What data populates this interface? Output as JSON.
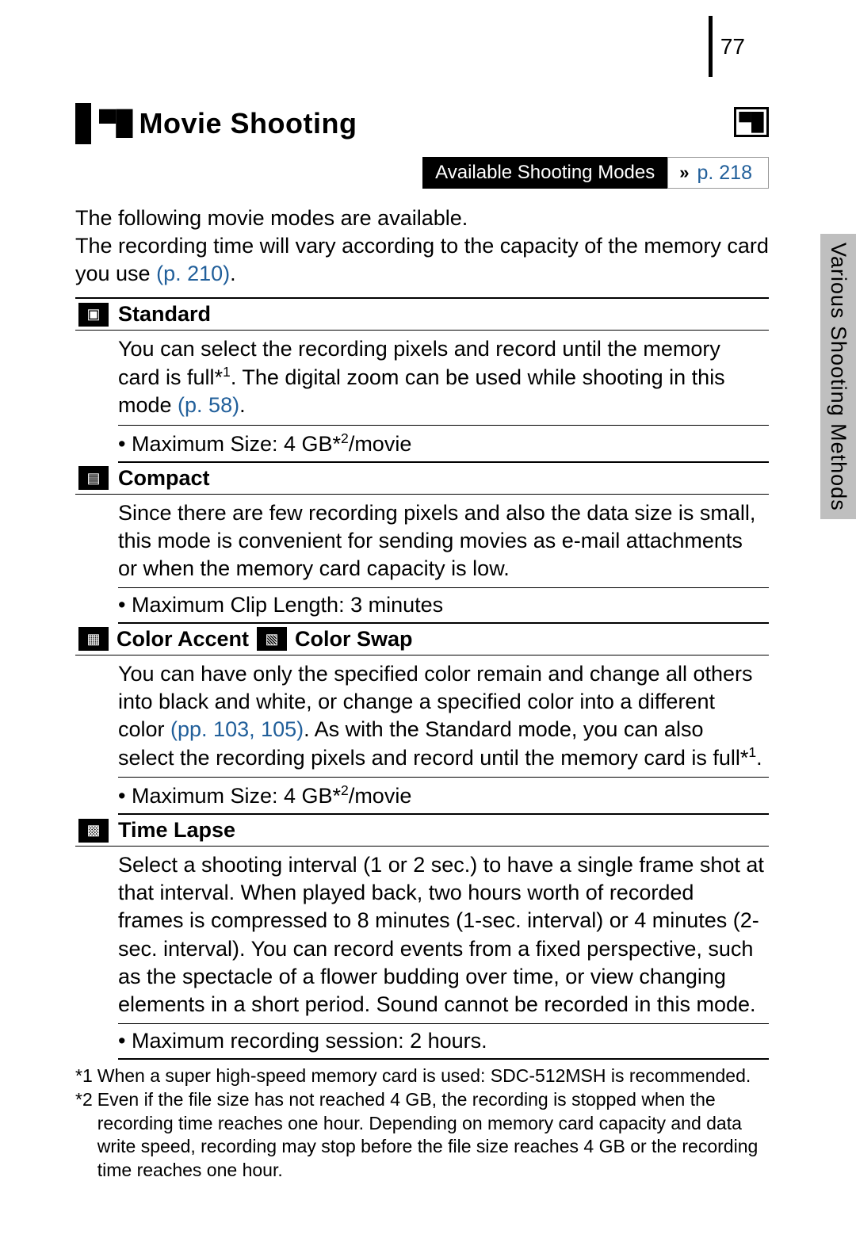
{
  "page_number": "77",
  "side_tab": "Various Shooting Methods",
  "title": {
    "icon": "▀█",
    "text": "Movie Shooting",
    "right_icon": "▀█"
  },
  "asm": {
    "label": "Available Shooting Modes",
    "arrow": "»",
    "link": "p. 218"
  },
  "intro": {
    "line1": "The following movie modes are available.",
    "line2_a": "The recording time will vary according to the capacity of the memory card you use ",
    "line2_link": "(p. 210)",
    "line2_b": "."
  },
  "modes": {
    "standard": {
      "icon": "▣",
      "title": "Standard",
      "body_a": "You can select the recording pixels and record until the memory card is full*",
      "body_sup1": "1",
      "body_b": ". The digital zoom can be used while shooting in this mode ",
      "body_link": "(p. 58)",
      "body_c": ".",
      "max_a": "Maximum Size: 4 GB*",
      "max_sup": "2",
      "max_b": "/movie"
    },
    "compact": {
      "icon": "▤",
      "title": "Compact",
      "body": "Since there are few recording pixels and also the data size is small, this mode is convenient for sending movies as e-mail attachments or when the memory card capacity is low.",
      "max": "Maximum Clip Length: 3 minutes"
    },
    "color": {
      "icon1": "▦",
      "title1": "Color Accent",
      "icon2": "▧",
      "title2": "Color Swap",
      "body_a": "You can have only the specified color remain and change all others into black and white, or change a specified color into a different color ",
      "body_link": "(pp. 103, 105)",
      "body_b": ". As with the Standard mode, you can also select the recording pixels and record until the memory card is full*",
      "body_sup": "1",
      "body_c": ".",
      "max_a": "Maximum Size: 4 GB*",
      "max_sup": "2",
      "max_b": "/movie"
    },
    "timelapse": {
      "icon": "▩",
      "title": "Time Lapse",
      "body": "Select a shooting interval (1 or 2 sec.) to have a single frame shot at that interval. When played back, two hours worth of recorded frames is compressed to 8 minutes (1-sec. interval) or 4 minutes (2-sec. interval). You can record events from a fixed perspective, such as the spectacle of a flower budding over time, or view changing elements in a short period. Sound cannot be recorded in this mode.",
      "max": "Maximum recording session: 2 hours."
    }
  },
  "footnotes": {
    "f1_key": "*1",
    "f1": "When a super high-speed memory card is used: SDC-512MSH is recommended.",
    "f2_key": "*2",
    "f2": "Even if the file size has not reached 4 GB, the recording is stopped when the recording time reaches one hour. Depending on memory card capacity and data write speed, recording may stop before the file size reaches 4 GB or the recording time reaches one hour."
  }
}
